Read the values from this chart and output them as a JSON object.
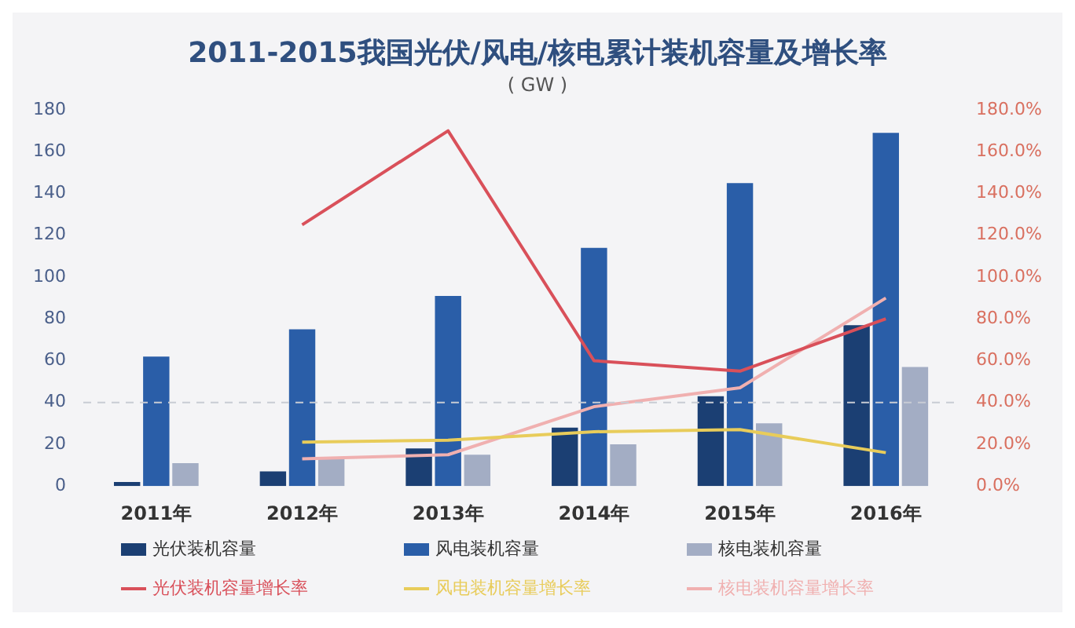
{
  "chart_data": {
    "type": "bar",
    "title": "2011-2015我国光伏/风电/核电累计装机容量及增长率",
    "subtitle": "( GW )",
    "categories": [
      "2011年",
      "2012年",
      "2013年",
      "2014年",
      "2015年",
      "2016年"
    ],
    "series": [
      {
        "name": "光伏装机容量",
        "color": "#1b3f73",
        "values": [
          2,
          7,
          18,
          28,
          43,
          77
        ]
      },
      {
        "name": "风电装机容量",
        "color": "#2a5ea8",
        "values": [
          62,
          75,
          91,
          114,
          145,
          169
        ]
      },
      {
        "name": "核电装机容量",
        "color": "#a3adc4",
        "values": [
          11,
          13,
          15,
          20,
          30,
          57
        ]
      },
      {
        "name": "光伏装机容量增长率",
        "type": "line",
        "axis": "y2",
        "color": "#d9505a",
        "values": [
          null,
          125,
          170,
          60,
          55,
          80
        ]
      },
      {
        "name": "风电装机容量增长率",
        "type": "line",
        "axis": "y2",
        "color": "#e8cc5a",
        "values": [
          null,
          21,
          22,
          26,
          27,
          16
        ]
      },
      {
        "name": "核电装机容量增长率",
        "type": "line",
        "axis": "y2",
        "color": "#f0b0b0",
        "values": [
          null,
          13,
          15,
          38,
          47,
          90
        ]
      }
    ],
    "ylim": [
      0,
      180
    ],
    "yticks": [
      0,
      20,
      40,
      60,
      80,
      100,
      120,
      140,
      160,
      180
    ],
    "y2lim": [
      0,
      180
    ],
    "y2ticks": [
      {
        "value": 0,
        "label": "0.0%"
      },
      {
        "value": 20,
        "label": "20.0%"
      },
      {
        "value": 40,
        "label": "40.0%"
      },
      {
        "value": 60,
        "label": "60.0%"
      },
      {
        "value": 80,
        "label": "80.0%"
      },
      {
        "value": 100,
        "label": "100.0%"
      },
      {
        "value": 120,
        "label": "120.0%"
      },
      {
        "value": 140,
        "label": "140.0%"
      },
      {
        "value": 160,
        "label": "160.0%"
      },
      {
        "value": 180,
        "label": "180.0%"
      }
    ],
    "ref_lines": [
      {
        "axis": "y",
        "value": 40,
        "color": "#c8ccd4",
        "line_style": "dashed"
      }
    ],
    "grid": false,
    "legend": "bottom",
    "marker": "none",
    "line_style": "solid"
  }
}
